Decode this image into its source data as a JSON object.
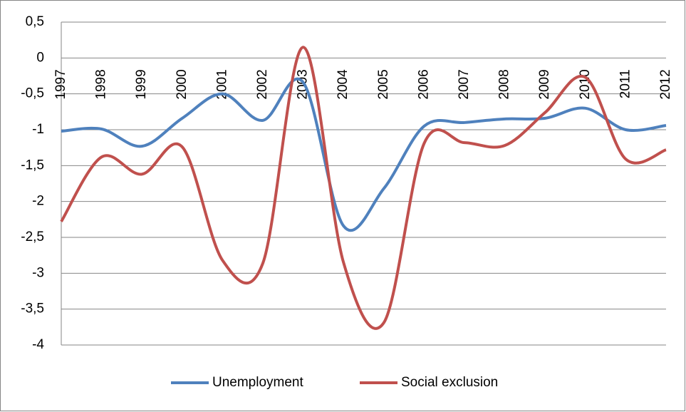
{
  "chart_data": {
    "type": "line",
    "categories": [
      "1997",
      "1998",
      "1999",
      "2000",
      "2001",
      "2002",
      "2003",
      "2004",
      "2005",
      "2006",
      "2007",
      "2008",
      "2009",
      "2010",
      "2011",
      "2012"
    ],
    "series": [
      {
        "name": "Unemployment",
        "color": "#4f81bd",
        "values": [
          -1.02,
          -0.99,
          -1.23,
          -0.84,
          -0.5,
          -0.87,
          -0.34,
          -2.34,
          -1.82,
          -0.95,
          -0.9,
          -0.85,
          -0.84,
          -0.7,
          -1.0,
          -0.94
        ]
      },
      {
        "name": "Social exclusion",
        "color": "#c0504d",
        "values": [
          -2.28,
          -1.38,
          -1.62,
          -1.24,
          -2.82,
          -2.86,
          0.15,
          -2.85,
          -3.69,
          -1.19,
          -1.18,
          -1.22,
          -0.76,
          -0.27,
          -1.41,
          -1.28
        ]
      }
    ],
    "ylim": [
      -4,
      0.5
    ],
    "yticks": [
      {
        "value": 0.5,
        "label": "0,5"
      },
      0,
      {
        "value": -0.5,
        "label": "-0,5"
      },
      -1,
      {
        "value": -1.5,
        "label": "-1,5"
      },
      -2,
      {
        "value": -2.5,
        "label": "-2,5"
      },
      -3,
      {
        "value": -3.5,
        "label": "-3,5"
      },
      -4
    ],
    "grid": true,
    "smooth": true,
    "legend": "bottom"
  }
}
